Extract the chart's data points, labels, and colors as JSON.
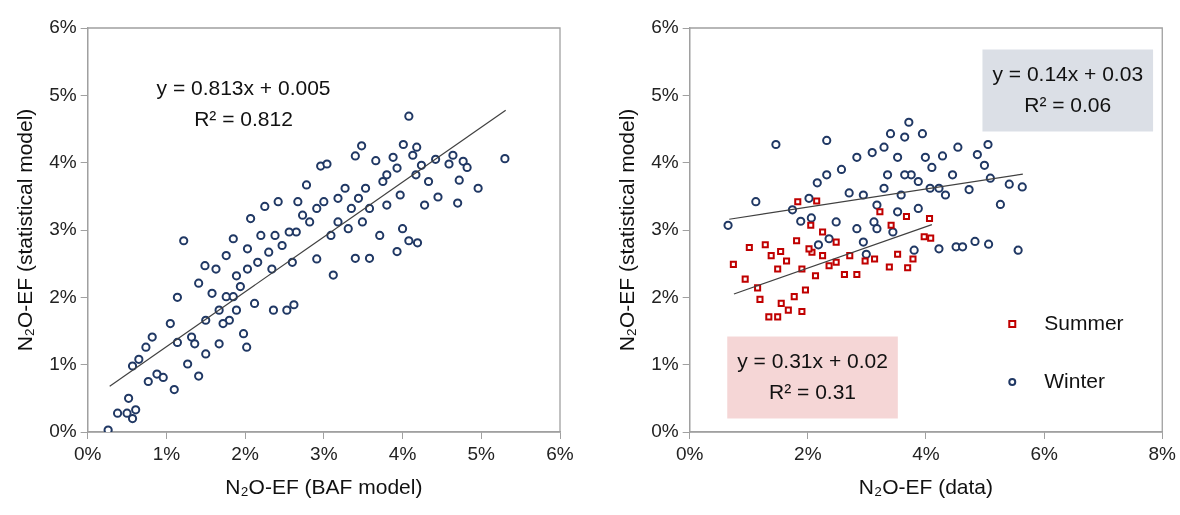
{
  "chart_data": [
    {
      "type": "scatter",
      "xlabel": "N₂O-EF (BAF model)",
      "ylabel": "N₂O-EF (statistical model)",
      "xlim": [
        0,
        0.06
      ],
      "ylim": [
        0,
        0.06
      ],
      "xticks": [
        {
          "value": 0,
          "label": "0%"
        },
        {
          "value": 0.01,
          "label": "1%"
        },
        {
          "value": 0.02,
          "label": "2%"
        },
        {
          "value": 0.03,
          "label": "3%"
        },
        {
          "value": 0.04,
          "label": "4%"
        },
        {
          "value": 0.05,
          "label": "5%"
        },
        {
          "value": 0.06,
          "label": "6%"
        }
      ],
      "yticks": [
        {
          "value": 0,
          "label": "0%"
        },
        {
          "value": 0.01,
          "label": "1%"
        },
        {
          "value": 0.02,
          "label": "2%"
        },
        {
          "value": 0.03,
          "label": "3%"
        },
        {
          "value": 0.04,
          "label": "4%"
        },
        {
          "value": 0.05,
          "label": "5%"
        },
        {
          "value": 0.06,
          "label": "6%"
        }
      ],
      "grid": false,
      "legend": false,
      "annotations": [
        "y = 0.813x + 0.005\nR² = 0.812"
      ],
      "series": [
        {
          "color": "#203864",
          "marker": "circle",
          "x": [
            0.0026,
            0.0038,
            0.005,
            0.0057,
            0.0052,
            0.0061,
            0.0057,
            0.0065,
            0.0074,
            0.0082,
            0.0077,
            0.0088,
            0.0096,
            0.011,
            0.0114,
            0.0122,
            0.0105,
            0.0127,
            0.0141,
            0.0114,
            0.0132,
            0.0141,
            0.0149,
            0.015,
            0.015,
            0.0163,
            0.0167,
            0.0176,
            0.0185,
            0.0176,
            0.018,
            0.0194,
            0.0198,
            0.0202,
            0.0203,
            0.0207,
            0.0212,
            0.022,
            0.0225,
            0.0234,
            0.0236,
            0.0242,
            0.0247,
            0.0253,
            0.026,
            0.0262,
            0.0265,
            0.0267,
            0.0278,
            0.0282,
            0.0291,
            0.0296,
            0.0304,
            0.03,
            0.0309,
            0.0312,
            0.0318,
            0.0327,
            0.0331,
            0.034,
            0.034,
            0.0344,
            0.0348,
            0.0349,
            0.0358,
            0.0358,
            0.0366,
            0.0371,
            0.0375,
            0.038,
            0.0388,
            0.0393,
            0.0397,
            0.04,
            0.0401,
            0.0408,
            0.0408,
            0.0413,
            0.0419,
            0.0418,
            0.0417,
            0.0424,
            0.0428,
            0.0433,
            0.0442,
            0.0445,
            0.0459,
            0.0464,
            0.047,
            0.0472,
            0.0477,
            0.0482,
            0.0496,
            0.053,
            0.0158,
            0.0167,
            0.0185,
            0.0189,
            0.0203,
            0.0216,
            0.023,
            0.0238,
            0.0256,
            0.0273,
            0.0291,
            0.0318,
            0.0335,
            0.0353,
            0.038,
            0.0393,
            0.0172,
            0.0136,
            0.0189
          ],
          "values": [
            0.0003,
            0.0028,
            0.0028,
            0.002,
            0.005,
            0.0033,
            0.0098,
            0.0108,
            0.0126,
            0.0141,
            0.0075,
            0.0086,
            0.0081,
            0.0063,
            0.02,
            0.0284,
            0.0161,
            0.0101,
            0.0083,
            0.0133,
            0.0141,
            0.0221,
            0.0247,
            0.0166,
            0.0116,
            0.0242,
            0.0131,
            0.0262,
            0.0287,
            0.0201,
            0.0166,
            0.0216,
            0.0146,
            0.0126,
            0.0272,
            0.0317,
            0.0191,
            0.0292,
            0.0335,
            0.0242,
            0.0181,
            0.0342,
            0.0277,
            0.0181,
            0.0252,
            0.0189,
            0.0297,
            0.0342,
            0.0367,
            0.0312,
            0.0257,
            0.0395,
            0.0398,
            0.0342,
            0.0292,
            0.0233,
            0.0347,
            0.0362,
            0.0302,
            0.0258,
            0.041,
            0.0347,
            0.0425,
            0.0312,
            0.0258,
            0.0332,
            0.0403,
            0.0292,
            0.0372,
            0.0337,
            0.0408,
            0.0268,
            0.0352,
            0.0302,
            0.0427,
            0.0469,
            0.0284,
            0.0411,
            0.0281,
            0.0423,
            0.0382,
            0.0396,
            0.0337,
            0.0372,
            0.0405,
            0.0349,
            0.0398,
            0.0411,
            0.034,
            0.0374,
            0.0402,
            0.0393,
            0.0362,
            0.0406,
            0.0206,
            0.0181,
            0.0201,
            0.0232,
            0.0242,
            0.0252,
            0.0267,
            0.0292,
            0.0297,
            0.0322,
            0.0332,
            0.0312,
            0.0332,
            0.0362,
            0.0382,
            0.0392,
            0.0161,
            0.0131,
            0.0181
          ]
        },
        {
          "type": "line",
          "color": "#404040",
          "marker": "none",
          "x": [
            0.0028,
            0.0531
          ],
          "values": [
            0.0068,
            0.0478
          ]
        }
      ]
    },
    {
      "type": "scatter",
      "xlabel": "N₂O-EF (data)",
      "ylabel": "N₂O-EF (statistical model)",
      "xlim": [
        0,
        0.08
      ],
      "ylim": [
        0,
        0.06
      ],
      "xticks": [
        {
          "value": 0,
          "label": "0%"
        },
        {
          "value": 0.02,
          "label": "2%"
        },
        {
          "value": 0.04,
          "label": "4%"
        },
        {
          "value": 0.06,
          "label": "6%"
        },
        {
          "value": 0.08,
          "label": "8%"
        }
      ],
      "yticks": [
        {
          "value": 0,
          "label": "0%"
        },
        {
          "value": 0.01,
          "label": "1%"
        },
        {
          "value": 0.02,
          "label": "2%"
        },
        {
          "value": 0.03,
          "label": "3%"
        },
        {
          "value": 0.04,
          "label": "4%"
        },
        {
          "value": 0.05,
          "label": "5%"
        },
        {
          "value": 0.06,
          "label": "6%"
        }
      ],
      "grid": false,
      "legend": "bottom right",
      "annotations": [
        "y = 0.14x + 0.03\nR² = 0.06",
        "y = 0.31x + 0.02\nR² = 0.31"
      ],
      "series": [
        {
          "name": "Summer",
          "color": "#c00000",
          "marker": "square",
          "x": [
            0.0074,
            0.0094,
            0.0101,
            0.0115,
            0.0119,
            0.0128,
            0.0134,
            0.0138,
            0.0149,
            0.0149,
            0.0154,
            0.0155,
            0.0164,
            0.0167,
            0.0177,
            0.0181,
            0.0183,
            0.019,
            0.0196,
            0.0205,
            0.0207,
            0.0215,
            0.0225,
            0.0236,
            0.0248,
            0.0262,
            0.0271,
            0.0283,
            0.0297,
            0.0313,
            0.0322,
            0.0338,
            0.0341,
            0.0352,
            0.0367,
            0.0369,
            0.0378,
            0.0397,
            0.0406,
            0.0408,
            0.0202,
            0.0225,
            0.0248,
            0.019,
            0.0213
          ],
          "values": [
            0.0249,
            0.0227,
            0.0274,
            0.0214,
            0.0197,
            0.0278,
            0.0171,
            0.0262,
            0.0171,
            0.0242,
            0.0268,
            0.0191,
            0.0254,
            0.0181,
            0.0201,
            0.0284,
            0.0342,
            0.0179,
            0.0211,
            0.0307,
            0.0267,
            0.0343,
            0.0297,
            0.0247,
            0.0282,
            0.0234,
            0.0262,
            0.0234,
            0.0254,
            0.0257,
            0.0327,
            0.0245,
            0.0307,
            0.0264,
            0.032,
            0.0244,
            0.0257,
            0.029,
            0.0317,
            0.0288,
            0.0272,
            0.0262,
            0.0252,
            0.0242,
            0.0232
          ]
        },
        {
          "name": "Winter",
          "color": "#203864",
          "marker": "circle",
          "x": [
            0.0065,
            0.0112,
            0.0146,
            0.0174,
            0.0188,
            0.0202,
            0.0206,
            0.0216,
            0.0218,
            0.0232,
            0.0232,
            0.0236,
            0.0248,
            0.0257,
            0.027,
            0.0283,
            0.0283,
            0.0294,
            0.0299,
            0.0309,
            0.0312,
            0.0317,
            0.0329,
            0.0335,
            0.034,
            0.0344,
            0.0352,
            0.0358,
            0.0364,
            0.0371,
            0.0375,
            0.038,
            0.0387,
            0.0394,
            0.0399,
            0.0407,
            0.041,
            0.0422,
            0.0428,
            0.0433,
            0.0445,
            0.0454,
            0.0451,
            0.0462,
            0.0473,
            0.0483,
            0.0487,
            0.0499,
            0.0505,
            0.0506,
            0.0509,
            0.0526,
            0.0541,
            0.0556,
            0.0563,
            0.0294,
            0.0329,
            0.0387,
            0.0422,
            0.0352,
            0.0317,
            0.0364
          ],
          "values": [
            0.0307,
            0.0342,
            0.0427,
            0.033,
            0.0313,
            0.0347,
            0.0318,
            0.037,
            0.0278,
            0.0433,
            0.0382,
            0.0287,
            0.0312,
            0.039,
            0.0355,
            0.0408,
            0.0302,
            0.0282,
            0.0264,
            0.0415,
            0.0312,
            0.0337,
            0.0423,
            0.0382,
            0.0443,
            0.0297,
            0.0408,
            0.0352,
            0.0438,
            0.046,
            0.0382,
            0.027,
            0.0332,
            0.0443,
            0.0408,
            0.0362,
            0.0393,
            0.0272,
            0.041,
            0.0352,
            0.0382,
            0.0423,
            0.0275,
            0.0275,
            0.036,
            0.0283,
            0.0412,
            0.0396,
            0.0427,
            0.0279,
            0.0377,
            0.0338,
            0.0368,
            0.027,
            0.0364,
            0.0352,
            0.0362,
            0.0372,
            0.0362,
            0.0327,
            0.0302,
            0.0382
          ]
        },
        {
          "type": "line",
          "color": "#404040",
          "marker": "none",
          "x": [
            0.0067,
            0.0564
          ],
          "values": [
            0.0316,
            0.0383
          ]
        },
        {
          "type": "line",
          "color": "#404040",
          "marker": "none",
          "x": [
            0.0075,
            0.041
          ],
          "values": [
            0.0205,
            0.0308
          ]
        }
      ]
    }
  ]
}
